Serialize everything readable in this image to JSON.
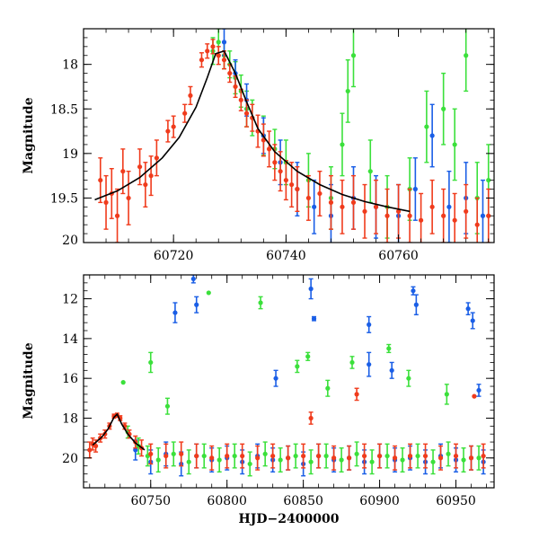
{
  "colors": {
    "red": "#f03b1c",
    "green": "#3be03b",
    "blue": "#1a5ee6",
    "model": "#000000"
  },
  "chart_data": [
    {
      "type": "scatter",
      "panel": "top",
      "xlabel": "",
      "ylabel": "Magnitude",
      "xlim": [
        60704,
        60777
      ],
      "ylim": [
        20.0,
        17.6
      ],
      "y_inverted": true,
      "xticks": [
        60720,
        60740,
        60760
      ],
      "yticks": [
        18,
        18.5,
        19,
        19.5,
        20
      ],
      "xtick_labels": [
        "60720",
        "60740",
        "60760"
      ],
      "ytick_labels": [
        "18",
        "18.5",
        "19",
        "19.5",
        "20"
      ],
      "model_curve": {
        "name": "model",
        "color": "black",
        "x": [
          60706,
          60710,
          60714,
          60718,
          60721,
          60724,
          60726,
          60727.5,
          60729,
          60731,
          60733,
          60735,
          60738,
          60742,
          60746,
          60750,
          60754,
          60758,
          60762
        ],
        "y": [
          19.52,
          19.42,
          19.27,
          19.05,
          18.82,
          18.48,
          18.15,
          17.88,
          17.85,
          18.1,
          18.42,
          18.72,
          18.98,
          19.2,
          19.35,
          19.46,
          19.54,
          19.6,
          19.65
        ]
      },
      "series": [
        {
          "name": "red",
          "color": "#f03b1c",
          "x": [
            60707,
            60708,
            60709,
            60710,
            60711,
            60712,
            60714,
            60715,
            60716,
            60717,
            60719,
            60720,
            60722,
            60723,
            60725,
            60726,
            60727,
            60728,
            60729,
            60730,
            60731,
            60732,
            60733,
            60734,
            60735,
            60736,
            60737,
            60738,
            60739,
            60740,
            60741,
            60742,
            60744,
            60746,
            60748,
            60750,
            60752,
            60754,
            60756,
            60758,
            60760,
            60762,
            60764,
            60766,
            60768,
            60770,
            60772,
            60774,
            60776
          ],
          "y": [
            19.3,
            19.55,
            19.45,
            19.7,
            19.2,
            19.5,
            19.15,
            19.35,
            19.25,
            19.05,
            18.75,
            18.7,
            18.55,
            18.35,
            17.95,
            17.85,
            17.8,
            17.9,
            17.95,
            18.1,
            18.25,
            18.4,
            18.55,
            18.6,
            18.75,
            18.85,
            18.95,
            19.1,
            19.2,
            19.3,
            19.35,
            19.4,
            19.5,
            19.45,
            19.55,
            19.6,
            19.55,
            19.65,
            19.6,
            19.7,
            19.65,
            19.7,
            19.75,
            19.6,
            19.7,
            19.75,
            19.65,
            19.8,
            19.7
          ],
          "yerr": [
            0.25,
            0.3,
            0.28,
            0.3,
            0.25,
            0.3,
            0.2,
            0.25,
            0.22,
            0.2,
            0.12,
            0.12,
            0.1,
            0.1,
            0.08,
            0.08,
            0.08,
            0.1,
            0.1,
            0.1,
            0.12,
            0.12,
            0.15,
            0.15,
            0.18,
            0.18,
            0.2,
            0.2,
            0.22,
            0.22,
            0.25,
            0.25,
            0.25,
            0.25,
            0.3,
            0.3,
            0.3,
            0.3,
            0.3,
            0.3,
            0.3,
            0.3,
            0.3,
            0.3,
            0.3,
            0.3,
            0.3,
            0.3,
            0.3
          ]
        },
        {
          "name": "green",
          "color": "#3be03b",
          "x": [
            60727,
            60728,
            60729,
            60730,
            60731,
            60732,
            60733,
            60734,
            60736,
            60738,
            60740,
            60744,
            60748,
            60750,
            60751,
            60752,
            60755,
            60758,
            60762,
            60765,
            60768,
            60770,
            60772,
            60774,
            60776
          ],
          "y": [
            17.85,
            17.75,
            17.9,
            18.0,
            18.15,
            18.3,
            18.5,
            18.6,
            18.8,
            18.95,
            19.1,
            19.3,
            19.5,
            18.9,
            18.3,
            17.9,
            19.2,
            19.6,
            19.4,
            18.7,
            18.5,
            18.9,
            17.9,
            19.5,
            19.3
          ],
          "yerr": [
            0.15,
            0.15,
            0.15,
            0.15,
            0.18,
            0.18,
            0.2,
            0.2,
            0.22,
            0.22,
            0.25,
            0.3,
            0.35,
            0.35,
            0.35,
            0.35,
            0.35,
            0.35,
            0.35,
            0.4,
            0.4,
            0.4,
            0.4,
            0.4,
            0.4
          ]
        },
        {
          "name": "blue",
          "color": "#1a5ee6",
          "x": [
            60729,
            60731,
            60733,
            60736,
            60739,
            60742,
            60745,
            60748,
            60752,
            60756,
            60760,
            60763,
            60766,
            60769,
            60772,
            60775
          ],
          "y": [
            17.75,
            18.1,
            18.4,
            18.8,
            19.1,
            19.4,
            19.6,
            19.7,
            19.5,
            19.6,
            19.7,
            19.4,
            18.8,
            19.6,
            19.5,
            19.7
          ],
          "yerr": [
            0.15,
            0.15,
            0.18,
            0.2,
            0.25,
            0.3,
            0.3,
            0.35,
            0.35,
            0.35,
            0.35,
            0.35,
            0.35,
            0.4,
            0.4,
            0.4
          ]
        }
      ]
    },
    {
      "type": "scatter",
      "panel": "bottom",
      "xlabel": "HJD−2400000",
      "ylabel": "Magnitude",
      "xlim": [
        60706,
        60975
      ],
      "ylim": [
        21.5,
        10.8
      ],
      "y_inverted": true,
      "xticks": [
        60750,
        60800,
        60850,
        60900,
        60950
      ],
      "yticks": [
        12,
        14,
        16,
        18,
        20
      ],
      "xtick_labels": [
        "60750",
        "60800",
        "60850",
        "60900",
        "60950"
      ],
      "ytick_labels": [
        "12",
        "14",
        "16",
        "18",
        "20"
      ],
      "model_curve": {
        "name": "model",
        "color": "black",
        "x": [
          60712,
          60718,
          60722,
          60726,
          60728,
          60731,
          60735,
          60740,
          60746
        ],
        "y": [
          19.35,
          18.95,
          18.55,
          17.95,
          17.8,
          18.3,
          18.8,
          19.25,
          19.6
        ]
      },
      "series": [
        {
          "name": "red",
          "color": "#f03b1c",
          "x": [
            60710,
            60712,
            60714,
            60717,
            60720,
            60723,
            60726,
            60728,
            60730,
            60733,
            60736,
            60740,
            60744,
            60750,
            60760,
            60770,
            60780,
            60790,
            60800,
            60810,
            60820,
            60830,
            60840,
            60850,
            60860,
            60870,
            60880,
            60890,
            60900,
            60910,
            60920,
            60930,
            60940,
            60950,
            60960,
            60968,
            60855,
            60885,
            60962
          ],
          "y": [
            19.6,
            19.3,
            19.4,
            19.0,
            18.8,
            18.4,
            17.9,
            17.85,
            18.0,
            18.4,
            18.8,
            19.2,
            19.5,
            19.8,
            19.9,
            19.8,
            19.9,
            20.0,
            19.9,
            19.9,
            20.0,
            19.9,
            20.0,
            19.9,
            19.9,
            20.0,
            20.0,
            19.9,
            19.9,
            20.0,
            19.9,
            19.9,
            20.0,
            19.9,
            20.0,
            19.9,
            18.0,
            16.8,
            16.9
          ],
          "yerr": [
            0.4,
            0.3,
            0.3,
            0.2,
            0.2,
            0.15,
            0.1,
            0.1,
            0.12,
            0.15,
            0.2,
            0.3,
            0.4,
            0.5,
            0.6,
            0.6,
            0.6,
            0.6,
            0.6,
            0.6,
            0.6,
            0.6,
            0.6,
            0.6,
            0.6,
            0.6,
            0.6,
            0.6,
            0.6,
            0.6,
            0.6,
            0.6,
            0.6,
            0.6,
            0.6,
            0.6,
            0.3,
            0.3,
            0.0
          ]
        },
        {
          "name": "green",
          "color": "#3be03b",
          "x": [
            60735,
            60742,
            60748,
            60755,
            60765,
            60775,
            60785,
            60795,
            60805,
            60815,
            60825,
            60835,
            60845,
            60855,
            60865,
            60875,
            60885,
            60895,
            60905,
            60915,
            60925,
            60935,
            60945,
            60955,
            60965,
            60732,
            60750,
            60761,
            60788,
            60822,
            60846,
            60853,
            60866,
            60882,
            60906,
            60919,
            60944
          ],
          "y": [
            18.7,
            19.4,
            19.9,
            20.1,
            19.8,
            20.2,
            19.9,
            20.1,
            19.9,
            20.3,
            19.8,
            20.1,
            19.9,
            20.2,
            19.9,
            20.1,
            19.8,
            20.2,
            19.9,
            20.1,
            19.9,
            20.2,
            19.8,
            20.1,
            20.0,
            16.2,
            15.2,
            17.4,
            11.7,
            12.2,
            15.4,
            14.9,
            16.5,
            15.2,
            14.5,
            16.0,
            16.8
          ],
          "yerr": [
            0.3,
            0.4,
            0.5,
            0.6,
            0.6,
            0.6,
            0.6,
            0.6,
            0.6,
            0.6,
            0.6,
            0.6,
            0.6,
            0.6,
            0.6,
            0.6,
            0.6,
            0.6,
            0.6,
            0.6,
            0.6,
            0.6,
            0.6,
            0.6,
            0.6,
            0.0,
            0.5,
            0.4,
            0.0,
            0.3,
            0.3,
            0.2,
            0.4,
            0.3,
            0.2,
            0.4,
            0.5
          ]
        },
        {
          "name": "blue",
          "color": "#1a5ee6",
          "x": [
            60740,
            60750,
            60760,
            60770,
            60780,
            60790,
            60800,
            60810,
            60820,
            60830,
            60840,
            60850,
            60860,
            60870,
            60880,
            60890,
            60900,
            60910,
            60920,
            60930,
            60940,
            60950,
            60960,
            60968,
            60766,
            60778,
            60780,
            60832,
            60855,
            60857,
            60893,
            60922,
            60924,
            60958,
            60961,
            60965,
            60908,
            60893
          ],
          "y": [
            19.6,
            20.2,
            19.8,
            20.3,
            19.9,
            20.1,
            20.0,
            20.2,
            19.9,
            20.1,
            20.0,
            20.3,
            19.9,
            20.1,
            20.0,
            20.2,
            19.9,
            20.1,
            20.0,
            20.2,
            19.9,
            20.1,
            20.0,
            20.2,
            12.7,
            11.0,
            12.3,
            16.0,
            11.5,
            13.0,
            13.3,
            11.6,
            12.3,
            12.5,
            13.1,
            16.6,
            15.6,
            15.3
          ],
          "yerr": [
            0.5,
            0.6,
            0.6,
            0.6,
            0.6,
            0.6,
            0.6,
            0.6,
            0.6,
            0.6,
            0.6,
            0.6,
            0.6,
            0.6,
            0.6,
            0.6,
            0.6,
            0.6,
            0.6,
            0.6,
            0.6,
            0.6,
            0.6,
            0.6,
            0.5,
            0.2,
            0.4,
            0.4,
            0.5,
            0.1,
            0.4,
            0.2,
            0.5,
            0.3,
            0.4,
            0.3,
            0.4,
            0.6
          ]
        }
      ]
    }
  ]
}
